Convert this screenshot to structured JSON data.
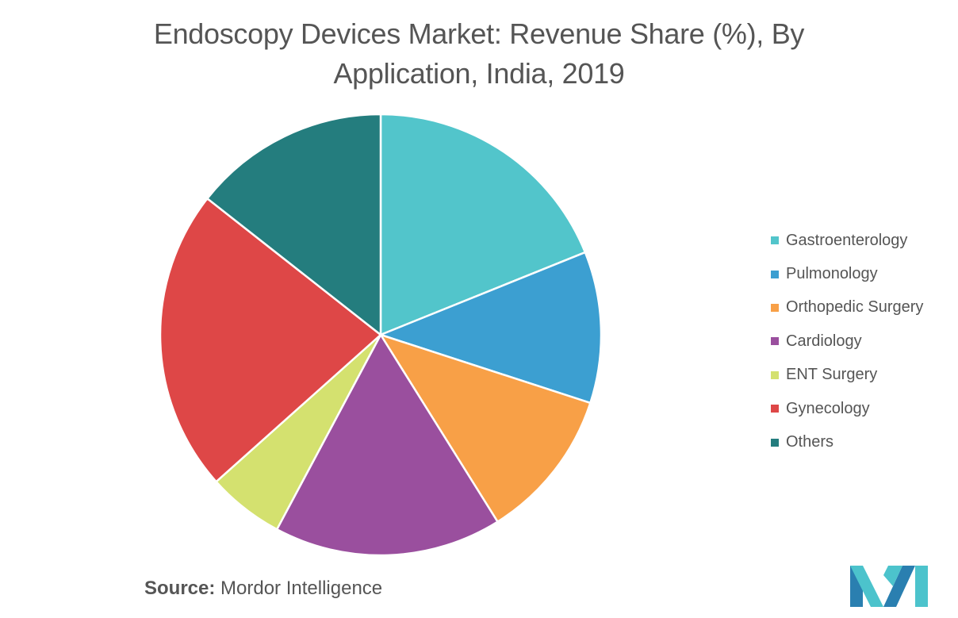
{
  "title_line1": "Endoscopy Devices Market: Revenue Share (%), By",
  "title_line2": "Application, India, 2019",
  "chart_data": {
    "type": "pie",
    "title": "Endoscopy Devices Market: Revenue Share (%), By Application, India, 2019",
    "start": "12 o'clock, clockwise",
    "legend_position": "right",
    "slices": [
      {
        "label": "Gastroenterology",
        "value": 18.9,
        "color": "#52C5CB"
      },
      {
        "label": "Pulmonology",
        "value": 11.1,
        "color": "#3C9FD1"
      },
      {
        "label": "Orthopedic Surgery",
        "value": 11.1,
        "color": "#F8A047"
      },
      {
        "label": "Cardiology",
        "value": 16.7,
        "color": "#9A4F9E"
      },
      {
        "label": "ENT Surgery",
        "value": 5.6,
        "color": "#D4E16F"
      },
      {
        "label": "Gynecology",
        "value": 22.2,
        "color": "#DE4747"
      },
      {
        "label": "Others",
        "value": 14.4,
        "color": "#247D7E"
      }
    ]
  },
  "source": {
    "label": "Source:",
    "text": "Mordor Intelligence"
  },
  "logo": {
    "icon": "mordor-intelligence-logo-icon",
    "colors": [
      "#2A7FB0",
      "#4CC3CC"
    ]
  }
}
